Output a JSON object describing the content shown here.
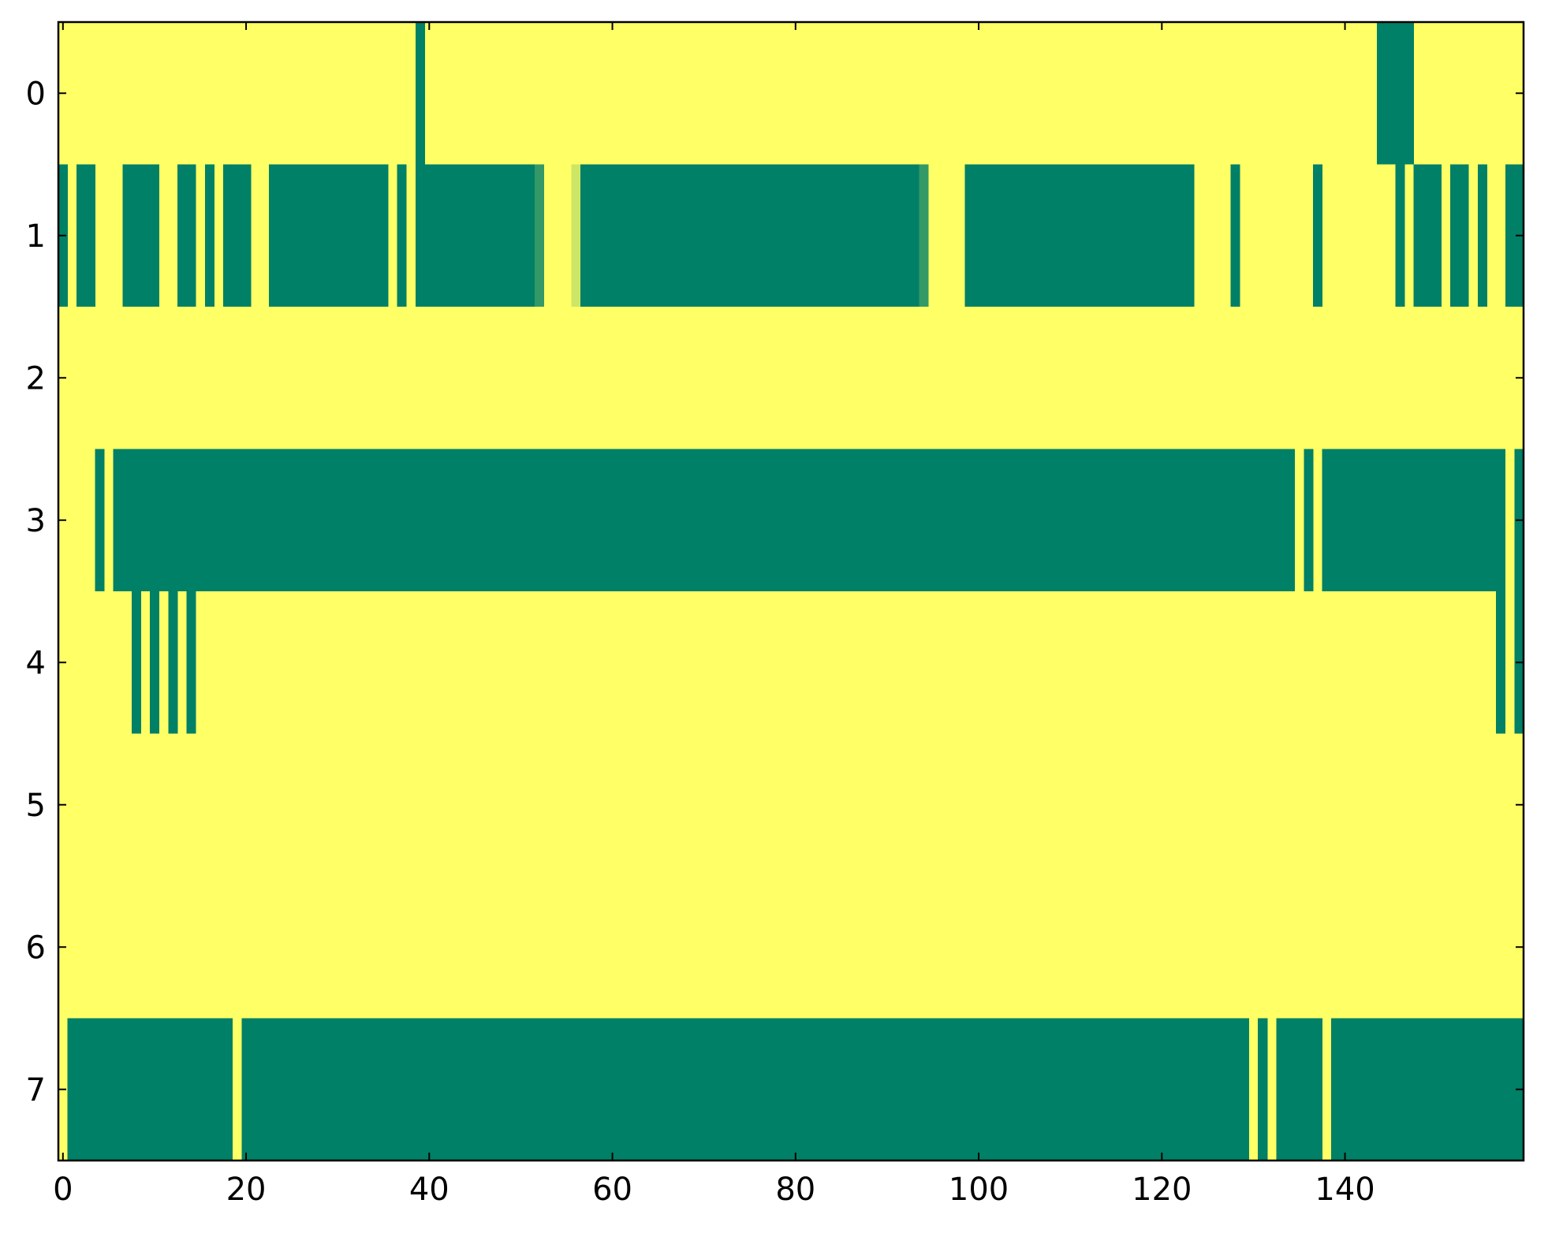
{
  "chart_data": {
    "type": "heatmap",
    "title": "",
    "xlabel": "",
    "ylabel": "",
    "n_cols": 160,
    "n_rows": 8,
    "xlim": [
      -0.5,
      159.5
    ],
    "ylim": [
      7.5,
      -0.5
    ],
    "x_ticks": [
      0,
      20,
      40,
      60,
      80,
      100,
      120,
      140
    ],
    "x_tick_labels": [
      "0",
      "20",
      "40",
      "60",
      "80",
      "100",
      "120",
      "140"
    ],
    "y_ticks": [
      0,
      1,
      2,
      3,
      4,
      5,
      6,
      7
    ],
    "y_tick_labels": [
      "0",
      "1",
      "2",
      "3",
      "4",
      "5",
      "6",
      "7"
    ],
    "colormap": {
      "low": "#008066",
      "high": "#ffff66"
    },
    "background_value": 1,
    "grid": false,
    "legend": "none",
    "rows": [
      {
        "row": 0,
        "segments": [
          [
            39,
            39,
            0
          ],
          [
            144,
            147,
            0
          ]
        ]
      },
      {
        "row": 1,
        "segments": [
          [
            0,
            0,
            0
          ],
          [
            2,
            3,
            0
          ],
          [
            7,
            10,
            0
          ],
          [
            13,
            14,
            0
          ],
          [
            16,
            16,
            0
          ],
          [
            18,
            20,
            0
          ],
          [
            23,
            35,
            0
          ],
          [
            37,
            37,
            0
          ],
          [
            39,
            51,
            0
          ],
          [
            52,
            52,
            0.2
          ],
          [
            56,
            56,
            0.8
          ],
          [
            57,
            93,
            0
          ],
          [
            94,
            94,
            0.2
          ],
          [
            99,
            123,
            0
          ],
          [
            128,
            128,
            0
          ],
          [
            137,
            137,
            0
          ],
          [
            146,
            146,
            0
          ],
          [
            148,
            150,
            0
          ],
          [
            152,
            153,
            0
          ],
          [
            155,
            155,
            0
          ],
          [
            158,
            159,
            0
          ]
        ]
      },
      {
        "row": 2,
        "segments": []
      },
      {
        "row": 3,
        "segments": [
          [
            4,
            4,
            0
          ],
          [
            6,
            134,
            0
          ],
          [
            136,
            136,
            0
          ],
          [
            138,
            157,
            0
          ],
          [
            159,
            159,
            0
          ]
        ]
      },
      {
        "row": 4,
        "segments": [
          [
            8,
            8,
            0
          ],
          [
            10,
            10,
            0
          ],
          [
            12,
            12,
            0
          ],
          [
            14,
            14,
            0
          ],
          [
            157,
            157,
            0
          ],
          [
            159,
            159,
            0
          ]
        ]
      },
      {
        "row": 5,
        "segments": []
      },
      {
        "row": 6,
        "segments": []
      },
      {
        "row": 7,
        "segments": [
          [
            1,
            5,
            0
          ],
          [
            6,
            10,
            0
          ],
          [
            11,
            14,
            0
          ],
          [
            15,
            18,
            0
          ],
          [
            20,
            129,
            0
          ],
          [
            131,
            131,
            0
          ],
          [
            133,
            137,
            0
          ],
          [
            139,
            159,
            0
          ]
        ]
      }
    ]
  }
}
